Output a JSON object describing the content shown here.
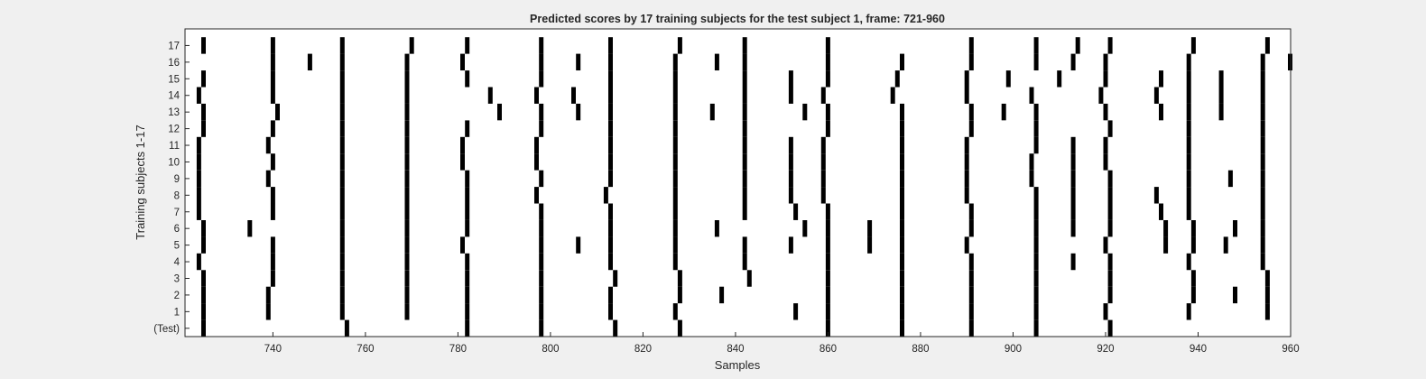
{
  "chart_data": {
    "type": "raster",
    "title": "Predicted scores by 17 training subjects for the test subject 1, frame: 721-960",
    "xlabel": "Samples",
    "ylabel": "Training subjects 1-17",
    "xlim": [
      721,
      960
    ],
    "x_ticks": [
      740,
      760,
      780,
      800,
      820,
      840,
      860,
      880,
      900,
      920,
      940,
      960
    ],
    "grid": false,
    "legend": "none",
    "colors": {
      "figure_bg": "#f0f0f0",
      "axes_bg": "#ffffff",
      "marks": "#000000",
      "text": "#262626"
    },
    "rows": [
      {
        "label": "(Test)",
        "spikes": [
          725,
          756,
          782,
          798,
          814,
          828,
          860,
          876,
          891,
          905,
          921
        ]
      },
      {
        "label": "1",
        "spikes": [
          725,
          739,
          755,
          769,
          782,
          798,
          813,
          827,
          853,
          860,
          876,
          891,
          905,
          920,
          938,
          955
        ]
      },
      {
        "label": "2",
        "spikes": [
          725,
          739,
          755,
          769,
          782,
          798,
          813,
          828,
          837,
          860,
          876,
          891,
          905,
          921,
          939,
          948,
          955
        ]
      },
      {
        "label": "3",
        "spikes": [
          725,
          740,
          755,
          769,
          782,
          798,
          814,
          828,
          843,
          860,
          876,
          891,
          905,
          921,
          939,
          955
        ]
      },
      {
        "label": "4",
        "spikes": [
          724,
          740,
          755,
          769,
          782,
          798,
          813,
          827,
          842,
          860,
          876,
          891,
          905,
          913,
          921,
          938,
          954
        ]
      },
      {
        "label": "5",
        "spikes": [
          725,
          740,
          755,
          769,
          781,
          798,
          806,
          813,
          827,
          842,
          852,
          860,
          869,
          876,
          890,
          905,
          920,
          933,
          939,
          946,
          954
        ]
      },
      {
        "label": "6",
        "spikes": [
          725,
          735,
          755,
          769,
          782,
          798,
          813,
          827,
          836,
          855,
          860,
          869,
          876,
          891,
          905,
          913,
          921,
          933,
          939,
          948,
          954
        ]
      },
      {
        "label": "7",
        "spikes": [
          724,
          740,
          755,
          769,
          782,
          798,
          813,
          827,
          842,
          853,
          860,
          876,
          891,
          905,
          913,
          921,
          932,
          938,
          954
        ]
      },
      {
        "label": "8",
        "spikes": [
          724,
          740,
          755,
          769,
          782,
          797,
          812,
          827,
          842,
          852,
          859,
          876,
          890,
          905,
          913,
          921,
          931,
          938,
          954
        ]
      },
      {
        "label": "9",
        "spikes": [
          724,
          739,
          755,
          769,
          782,
          798,
          813,
          827,
          842,
          852,
          859,
          876,
          890,
          904,
          913,
          921,
          938,
          947,
          954
        ]
      },
      {
        "label": "10",
        "spikes": [
          724,
          740,
          755,
          769,
          781,
          797,
          813,
          827,
          842,
          852,
          859,
          876,
          890,
          904,
          913,
          920,
          938,
          954
        ]
      },
      {
        "label": "11",
        "spikes": [
          724,
          739,
          755,
          769,
          781,
          797,
          813,
          827,
          842,
          852,
          859,
          876,
          890,
          905,
          913,
          920,
          938,
          954
        ]
      },
      {
        "label": "12",
        "spikes": [
          725,
          740,
          755,
          769,
          782,
          798,
          813,
          827,
          842,
          860,
          876,
          891,
          905,
          921,
          938,
          954
        ]
      },
      {
        "label": "13",
        "spikes": [
          725,
          741,
          755,
          769,
          789,
          798,
          806,
          813,
          827,
          835,
          842,
          855,
          860,
          876,
          891,
          898,
          905,
          920,
          932,
          938,
          945,
          954
        ]
      },
      {
        "label": "14",
        "spikes": [
          724,
          740,
          755,
          769,
          787,
          797,
          805,
          813,
          827,
          842,
          852,
          859,
          874,
          890,
          904,
          919,
          931,
          938,
          945,
          954
        ]
      },
      {
        "label": "15",
        "spikes": [
          725,
          740,
          755,
          769,
          782,
          798,
          813,
          827,
          842,
          852,
          860,
          875,
          890,
          899,
          910,
          920,
          932,
          938,
          945,
          954
        ]
      },
      {
        "label": "16",
        "spikes": [
          740,
          748,
          755,
          769,
          781,
          798,
          806,
          813,
          827,
          836,
          842,
          860,
          876,
          891,
          905,
          913,
          920,
          938,
          954,
          960
        ]
      },
      {
        "label": "17",
        "spikes": [
          725,
          740,
          755,
          770,
          782,
          798,
          813,
          828,
          842,
          860,
          891,
          905,
          914,
          921,
          939,
          955
        ]
      }
    ]
  }
}
